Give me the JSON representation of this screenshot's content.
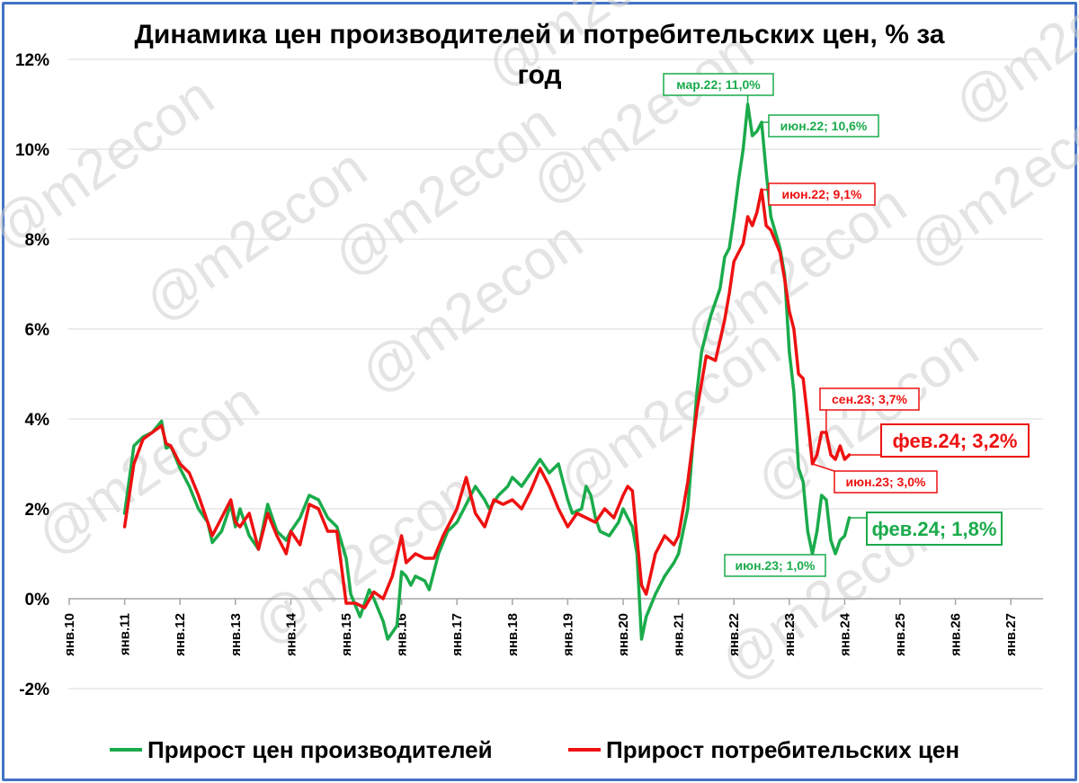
{
  "chart_data": {
    "type": "line",
    "title_line1": "Динамика цен производителей и потребительских цен, % за",
    "title_line2": "год",
    "watermark": "@m2econ",
    "ylim": [
      -2,
      12
    ],
    "y_ticks": [
      -2,
      0,
      2,
      4,
      6,
      8,
      10,
      12
    ],
    "y_tick_labels": [
      "-2%",
      "0%",
      "2%",
      "4%",
      "6%",
      "8%",
      "10%",
      "12%"
    ],
    "x_ticks": [
      2010,
      2011,
      2012,
      2013,
      2014,
      2015,
      2016,
      2017,
      2018,
      2019,
      2020,
      2021,
      2022,
      2023,
      2024,
      2025,
      2026,
      2027
    ],
    "x_tick_labels": [
      "янв.10",
      "янв.11",
      "янв.12",
      "янв.13",
      "янв.14",
      "янв.15",
      "янв.16",
      "янв.17",
      "янв.18",
      "янв.19",
      "янв.20",
      "янв.21",
      "янв.22",
      "янв.23",
      "янв.24",
      "янв.25",
      "янв.26",
      "янв.27"
    ],
    "grid": "horizontal",
    "legend_position": "bottom",
    "series": [
      {
        "name": "Прирост цен производителей",
        "color": "#1aab4b",
        "points": [
          [
            2011.0,
            1.9
          ],
          [
            2011.167,
            3.4
          ],
          [
            2011.333,
            3.6
          ],
          [
            2011.5,
            3.7
          ],
          [
            2011.667,
            3.95
          ],
          [
            2011.75,
            3.35
          ],
          [
            2011.833,
            3.4
          ],
          [
            2012.0,
            2.9
          ],
          [
            2012.167,
            2.5
          ],
          [
            2012.333,
            2.0
          ],
          [
            2012.5,
            1.7
          ],
          [
            2012.583,
            1.25
          ],
          [
            2012.75,
            1.5
          ],
          [
            2012.917,
            2.1
          ],
          [
            2013.0,
            1.6
          ],
          [
            2013.083,
            2.0
          ],
          [
            2013.25,
            1.4
          ],
          [
            2013.417,
            1.1
          ],
          [
            2013.583,
            2.1
          ],
          [
            2013.75,
            1.5
          ],
          [
            2013.917,
            1.3
          ],
          [
            2014.0,
            1.5
          ],
          [
            2014.167,
            1.8
          ],
          [
            2014.333,
            2.3
          ],
          [
            2014.5,
            2.2
          ],
          [
            2014.667,
            1.8
          ],
          [
            2014.833,
            1.6
          ],
          [
            2015.0,
            0.9
          ],
          [
            2015.083,
            0.1
          ],
          [
            2015.25,
            -0.4
          ],
          [
            2015.417,
            0.2
          ],
          [
            2015.5,
            0.0
          ],
          [
            2015.667,
            -0.5
          ],
          [
            2015.75,
            -0.9
          ],
          [
            2015.917,
            -0.6
          ],
          [
            2016.0,
            0.6
          ],
          [
            2016.083,
            0.5
          ],
          [
            2016.167,
            0.3
          ],
          [
            2016.25,
            0.5
          ],
          [
            2016.417,
            0.4
          ],
          [
            2016.5,
            0.2
          ],
          [
            2016.667,
            1.0
          ],
          [
            2016.833,
            1.5
          ],
          [
            2017.0,
            1.7
          ],
          [
            2017.167,
            2.1
          ],
          [
            2017.333,
            2.5
          ],
          [
            2017.5,
            2.2
          ],
          [
            2017.583,
            2.0
          ],
          [
            2017.75,
            2.3
          ],
          [
            2017.917,
            2.5
          ],
          [
            2018.0,
            2.7
          ],
          [
            2018.167,
            2.5
          ],
          [
            2018.333,
            2.8
          ],
          [
            2018.5,
            3.1
          ],
          [
            2018.667,
            2.8
          ],
          [
            2018.833,
            3.0
          ],
          [
            2019.0,
            2.2
          ],
          [
            2019.083,
            1.9
          ],
          [
            2019.25,
            2.0
          ],
          [
            2019.333,
            2.5
          ],
          [
            2019.417,
            2.3
          ],
          [
            2019.5,
            1.8
          ],
          [
            2019.583,
            1.5
          ],
          [
            2019.75,
            1.4
          ],
          [
            2019.917,
            1.7
          ],
          [
            2020.0,
            2.0
          ],
          [
            2020.083,
            1.8
          ],
          [
            2020.167,
            1.6
          ],
          [
            2020.25,
            1.0
          ],
          [
            2020.333,
            -0.9
          ],
          [
            2020.417,
            -0.4
          ],
          [
            2020.583,
            0.1
          ],
          [
            2020.75,
            0.5
          ],
          [
            2020.917,
            0.8
          ],
          [
            2021.0,
            1.0
          ],
          [
            2021.167,
            2.0
          ],
          [
            2021.333,
            4.6
          ],
          [
            2021.417,
            5.5
          ],
          [
            2021.5,
            5.9
          ],
          [
            2021.583,
            6.3
          ],
          [
            2021.75,
            6.9
          ],
          [
            2021.833,
            7.6
          ],
          [
            2021.917,
            7.8
          ],
          [
            2022.0,
            8.5
          ],
          [
            2022.083,
            9.3
          ],
          [
            2022.167,
            10.0
          ],
          [
            2022.25,
            11.0
          ],
          [
            2022.333,
            10.3
          ],
          [
            2022.417,
            10.4
          ],
          [
            2022.5,
            10.6
          ],
          [
            2022.583,
            9.5
          ],
          [
            2022.667,
            8.5
          ],
          [
            2022.833,
            7.8
          ],
          [
            2022.917,
            7.2
          ],
          [
            2023.0,
            5.5
          ],
          [
            2023.083,
            4.6
          ],
          [
            2023.167,
            2.9
          ],
          [
            2023.25,
            2.6
          ],
          [
            2023.333,
            1.5
          ],
          [
            2023.417,
            1.0
          ],
          [
            2023.5,
            1.5
          ],
          [
            2023.583,
            2.3
          ],
          [
            2023.667,
            2.2
          ],
          [
            2023.75,
            1.3
          ],
          [
            2023.833,
            1.0
          ],
          [
            2023.917,
            1.3
          ],
          [
            2024.0,
            1.4
          ],
          [
            2024.083,
            1.8
          ]
        ]
      },
      {
        "name": "Прирост потребительских цен",
        "color": "#ee1111",
        "points": [
          [
            2011.0,
            1.6
          ],
          [
            2011.167,
            3.0
          ],
          [
            2011.333,
            3.55
          ],
          [
            2011.5,
            3.7
          ],
          [
            2011.667,
            3.85
          ],
          [
            2011.75,
            3.45
          ],
          [
            2011.833,
            3.4
          ],
          [
            2012.0,
            3.0
          ],
          [
            2012.167,
            2.8
          ],
          [
            2012.333,
            2.3
          ],
          [
            2012.5,
            1.7
          ],
          [
            2012.583,
            1.4
          ],
          [
            2012.75,
            1.8
          ],
          [
            2012.917,
            2.2
          ],
          [
            2013.0,
            1.7
          ],
          [
            2013.083,
            1.6
          ],
          [
            2013.25,
            1.9
          ],
          [
            2013.417,
            1.1
          ],
          [
            2013.583,
            1.9
          ],
          [
            2013.75,
            1.4
          ],
          [
            2013.917,
            1.0
          ],
          [
            2014.0,
            1.5
          ],
          [
            2014.167,
            1.2
          ],
          [
            2014.333,
            2.1
          ],
          [
            2014.5,
            2.0
          ],
          [
            2014.667,
            1.5
          ],
          [
            2014.833,
            1.5
          ],
          [
            2015.0,
            -0.1
          ],
          [
            2015.167,
            -0.1
          ],
          [
            2015.333,
            -0.2
          ],
          [
            2015.5,
            0.15
          ],
          [
            2015.667,
            0.0
          ],
          [
            2015.833,
            0.5
          ],
          [
            2016.0,
            1.4
          ],
          [
            2016.083,
            0.8
          ],
          [
            2016.25,
            1.0
          ],
          [
            2016.417,
            0.9
          ],
          [
            2016.583,
            0.9
          ],
          [
            2016.75,
            1.4
          ],
          [
            2016.917,
            1.8
          ],
          [
            2017.0,
            2.0
          ],
          [
            2017.167,
            2.7
          ],
          [
            2017.333,
            1.9
          ],
          [
            2017.5,
            1.6
          ],
          [
            2017.667,
            2.2
          ],
          [
            2017.833,
            2.1
          ],
          [
            2018.0,
            2.2
          ],
          [
            2018.167,
            2.0
          ],
          [
            2018.333,
            2.4
          ],
          [
            2018.5,
            2.9
          ],
          [
            2018.667,
            2.5
          ],
          [
            2018.833,
            2.0
          ],
          [
            2019.0,
            1.6
          ],
          [
            2019.167,
            1.9
          ],
          [
            2019.333,
            1.8
          ],
          [
            2019.5,
            1.7
          ],
          [
            2019.667,
            2.0
          ],
          [
            2019.833,
            1.8
          ],
          [
            2020.0,
            2.3
          ],
          [
            2020.083,
            2.5
          ],
          [
            2020.167,
            2.4
          ],
          [
            2020.333,
            0.3
          ],
          [
            2020.417,
            0.1
          ],
          [
            2020.583,
            1.0
          ],
          [
            2020.75,
            1.4
          ],
          [
            2020.917,
            1.2
          ],
          [
            2021.0,
            1.4
          ],
          [
            2021.167,
            2.6
          ],
          [
            2021.333,
            4.2
          ],
          [
            2021.5,
            5.4
          ],
          [
            2021.667,
            5.3
          ],
          [
            2021.833,
            6.2
          ],
          [
            2021.917,
            6.8
          ],
          [
            2022.0,
            7.5
          ],
          [
            2022.167,
            7.9
          ],
          [
            2022.25,
            8.5
          ],
          [
            2022.333,
            8.3
          ],
          [
            2022.417,
            8.6
          ],
          [
            2022.5,
            9.1
          ],
          [
            2022.583,
            8.3
          ],
          [
            2022.667,
            8.2
          ],
          [
            2022.833,
            7.7
          ],
          [
            2022.917,
            7.1
          ],
          [
            2023.0,
            6.4
          ],
          [
            2023.083,
            6.0
          ],
          [
            2023.167,
            5.0
          ],
          [
            2023.25,
            4.9
          ],
          [
            2023.333,
            4.0
          ],
          [
            2023.417,
            3.0
          ],
          [
            2023.5,
            3.2
          ],
          [
            2023.583,
            3.7
          ],
          [
            2023.667,
            3.7
          ],
          [
            2023.75,
            3.2
          ],
          [
            2023.833,
            3.1
          ],
          [
            2023.917,
            3.4
          ],
          [
            2024.0,
            3.1
          ],
          [
            2024.083,
            3.2
          ]
        ]
      }
    ],
    "annotations": [
      {
        "label": "мар.22; 11,0%",
        "x": 2022.25,
        "y": 11.0,
        "series": 0,
        "size": "small"
      },
      {
        "label": "июн.22; 10,6%",
        "x": 2022.5,
        "y": 10.6,
        "series": 0,
        "size": "small"
      },
      {
        "label": "июн.22; 9,1%",
        "x": 2022.5,
        "y": 9.1,
        "series": 1,
        "size": "small"
      },
      {
        "label": "сен.23; 3,7%",
        "x": 2023.667,
        "y": 3.7,
        "series": 1,
        "size": "small"
      },
      {
        "label": "фев.24; 3,2%",
        "x": 2024.083,
        "y": 3.2,
        "series": 1,
        "size": "large"
      },
      {
        "label": "июн.23; 3,0%",
        "x": 2023.417,
        "y": 3.0,
        "series": 1,
        "size": "small"
      },
      {
        "label": "фев.24; 1,8%",
        "x": 2024.083,
        "y": 1.8,
        "series": 0,
        "size": "large"
      },
      {
        "label": "июн.23; 1,0%",
        "x": 2023.417,
        "y": 1.0,
        "series": 0,
        "size": "small"
      }
    ]
  }
}
